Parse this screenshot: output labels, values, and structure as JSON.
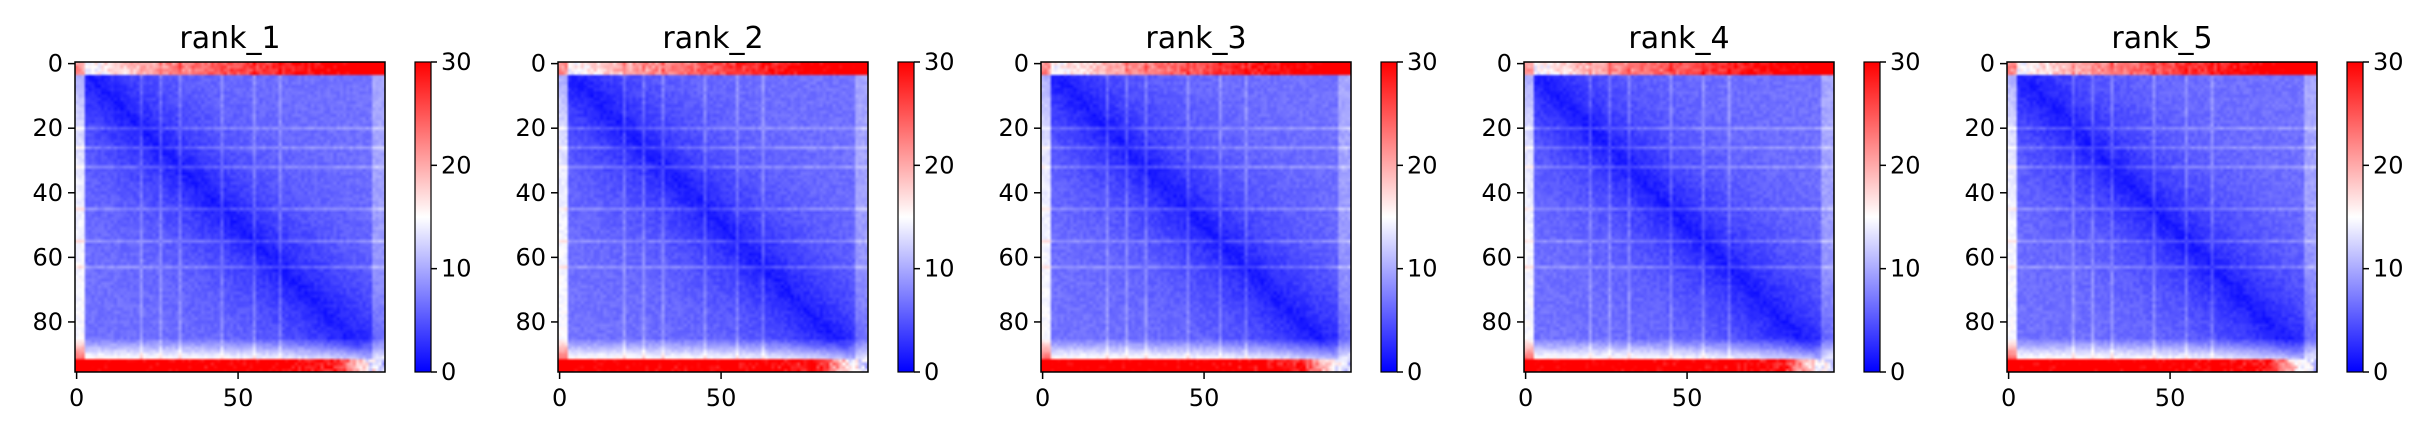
{
  "chart_data": [
    {
      "type": "heatmap",
      "title": "rank_1",
      "cmap": "bwr",
      "size": 96,
      "xticks": [
        0,
        50
      ],
      "yticks": [
        0,
        20,
        40,
        60,
        80
      ],
      "colorbar": {
        "range": [
          0,
          30
        ],
        "ticks": [
          0,
          10,
          20,
          30
        ]
      }
    },
    {
      "type": "heatmap",
      "title": "rank_2",
      "cmap": "bwr",
      "size": 96,
      "xticks": [
        0,
        50
      ],
      "yticks": [
        0,
        20,
        40,
        60,
        80
      ],
      "colorbar": {
        "range": [
          0,
          30
        ],
        "ticks": [
          0,
          10,
          20,
          30
        ]
      }
    },
    {
      "type": "heatmap",
      "title": "rank_3",
      "cmap": "bwr",
      "size": 96,
      "xticks": [
        0,
        50
      ],
      "yticks": [
        0,
        20,
        40,
        60,
        80
      ],
      "colorbar": {
        "range": [
          0,
          30
        ],
        "ticks": [
          0,
          10,
          20,
          30
        ]
      }
    },
    {
      "type": "heatmap",
      "title": "rank_4",
      "cmap": "bwr",
      "size": 96,
      "xticks": [
        0,
        50
      ],
      "yticks": [
        0,
        20,
        40,
        60,
        80
      ],
      "colorbar": {
        "range": [
          0,
          30
        ],
        "ticks": [
          0,
          10,
          20,
          30
        ]
      }
    },
    {
      "type": "heatmap",
      "title": "rank_5",
      "cmap": "bwr",
      "size": 96,
      "xticks": [
        0,
        50
      ],
      "yticks": [
        0,
        20,
        40,
        60,
        80
      ],
      "colorbar": {
        "range": [
          0,
          30
        ],
        "ticks": [
          0,
          10,
          20,
          30
        ]
      }
    }
  ]
}
